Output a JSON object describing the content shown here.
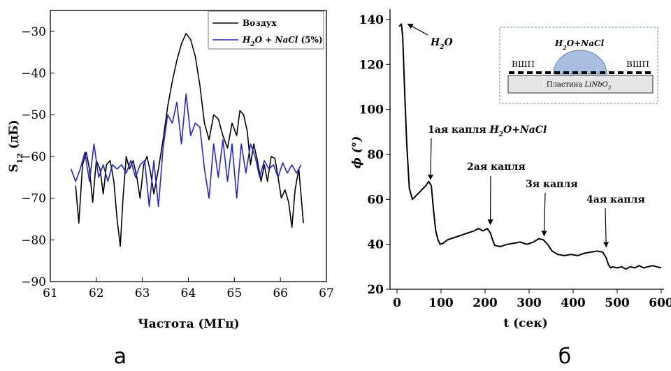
{
  "chart_data": [
    {
      "type": "line",
      "panel_label": "а",
      "xlabel": "Частота (МГц)",
      "ylabel_main": "S",
      "ylabel_sub": "12",
      "ylabel_unit": " (дБ)",
      "xlim": [
        61,
        67
      ],
      "ylim": [
        -90,
        -25
      ],
      "xticks": [
        61,
        62,
        63,
        64,
        65,
        66,
        67
      ],
      "yticks": [
        -90,
        -80,
        -70,
        -60,
        -50,
        -40,
        -30
      ],
      "legend_position": "top-right",
      "series": [
        {
          "name": "Воздух",
          "color": "#000000",
          "x": [
            61.55,
            61.62,
            61.7,
            61.78,
            61.85,
            61.92,
            62.0,
            62.08,
            62.15,
            62.22,
            62.3,
            62.38,
            62.45,
            62.52,
            62.58,
            62.65,
            62.72,
            62.8,
            62.88,
            62.95,
            63.03,
            63.1,
            63.18,
            63.25,
            63.35,
            63.45,
            63.55,
            63.65,
            63.75,
            63.85,
            63.95,
            64.05,
            64.15,
            64.25,
            64.35,
            64.45,
            64.55,
            64.65,
            64.75,
            64.85,
            64.95,
            65.05,
            65.12,
            65.2,
            65.28,
            65.35,
            65.42,
            65.5,
            65.58,
            65.65,
            65.72,
            65.8,
            65.88,
            65.95,
            66.02,
            66.1,
            66.18,
            66.25,
            66.32,
            66.4,
            66.5
          ],
          "y": [
            -67,
            -76,
            -62,
            -59,
            -63,
            -71,
            -61,
            -63,
            -69,
            -62,
            -61,
            -66,
            -75,
            -81.5,
            -70,
            -60,
            -63,
            -61,
            -65,
            -70,
            -62,
            -60,
            -64,
            -69,
            -63,
            -56,
            -48,
            -42,
            -37,
            -33,
            -30.5,
            -32,
            -36,
            -43,
            -52,
            -56,
            -50,
            -51,
            -55,
            -58,
            -52,
            -55,
            -49,
            -50,
            -54,
            -62,
            -57,
            -61,
            -66,
            -62,
            -66,
            -60,
            -60.5,
            -65,
            -70,
            -68,
            -71,
            -77,
            -68,
            -63,
            -76
          ]
        },
        {
          "name": "H2O + NaCl (5%)",
          "name_parts": [
            "H",
            "2",
            "O + ",
            "NaCl",
            " (5%)"
          ],
          "color": "#1f24e6",
          "x": [
            61.45,
            61.55,
            61.65,
            61.75,
            61.85,
            61.95,
            62.05,
            62.15,
            62.25,
            62.35,
            62.45,
            62.55,
            62.65,
            62.75,
            62.85,
            62.95,
            63.05,
            63.15,
            63.25,
            63.35,
            63.45,
            63.55,
            63.65,
            63.75,
            63.85,
            63.95,
            64.05,
            64.15,
            64.25,
            64.35,
            64.45,
            64.55,
            64.65,
            64.75,
            64.85,
            64.95,
            65.05,
            65.15,
            65.25,
            65.35,
            65.45,
            65.55,
            65.65,
            65.75,
            65.85,
            65.95,
            66.05,
            66.15,
            66.25,
            66.35,
            66.45
          ],
          "y": [
            -63,
            -66,
            -63,
            -59,
            -66,
            -57,
            -65,
            -62,
            -66,
            -62,
            -63,
            -62,
            -64,
            -61,
            -65,
            -62,
            -61,
            -72,
            -61,
            -72,
            -58,
            -50,
            -52,
            -47,
            -57,
            -45,
            -55,
            -52,
            -53,
            -63,
            -70,
            -57,
            -65,
            -56,
            -66,
            -57,
            -70,
            -57,
            -64,
            -57,
            -60,
            -65,
            -61,
            -63,
            -62,
            -65,
            -61.5,
            -64,
            -62,
            -64,
            -62
          ]
        }
      ]
    },
    {
      "type": "line",
      "panel_label": "б",
      "xlabel": "t (сек)",
      "ylabel": "ϕ (°)",
      "xlim": [
        0,
        600
      ],
      "ylim": [
        20,
        140
      ],
      "xticks": [
        0,
        100,
        200,
        300,
        400,
        500,
        600
      ],
      "yticks": [
        20,
        40,
        60,
        80,
        100,
        120,
        140
      ],
      "series": [
        {
          "name": "",
          "color": "#000000",
          "x": [
            5,
            10,
            13,
            17,
            22,
            28,
            35,
            45,
            55,
            65,
            72,
            78,
            83,
            88,
            93,
            98,
            105,
            115,
            130,
            145,
            160,
            175,
            185,
            195,
            205,
            212,
            217,
            222,
            235,
            250,
            265,
            280,
            295,
            310,
            322,
            332,
            342,
            352,
            365,
            380,
            395,
            410,
            425,
            440,
            455,
            467,
            475,
            480,
            485,
            490,
            500,
            510,
            520,
            530,
            540,
            550,
            560,
            570,
            580,
            590,
            600
          ],
          "y": [
            137,
            138,
            132,
            110,
            85,
            65,
            60,
            62,
            64,
            66,
            68,
            66,
            55,
            46,
            42,
            40,
            40.5,
            42,
            43,
            44,
            45,
            46,
            47,
            46,
            47,
            45,
            42,
            39.5,
            39,
            40,
            40.5,
            41,
            40,
            41,
            42.5,
            42,
            40,
            37,
            35.5,
            35,
            35.5,
            35,
            36,
            36.5,
            37,
            36.5,
            34,
            31,
            29.5,
            30,
            29.5,
            30,
            29,
            30,
            29.5,
            30.5,
            29.5,
            30,
            30.5,
            30,
            29.5
          ]
        }
      ],
      "annotations": [
        {
          "text_parts": [
            "1ая капля ",
            "H",
            "2",
            "O+NaCl"
          ],
          "arrow_to": [
            76,
            67
          ]
        },
        {
          "text": "2ая капля",
          "arrow_to": [
            212,
            47
          ]
        },
        {
          "text": "3я капля",
          "arrow_to": [
            334,
            42
          ]
        },
        {
          "text": "4ая капля",
          "arrow_to": [
            475,
            37
          ]
        },
        {
          "text_parts": [
            "H",
            "2",
            "O"
          ],
          "arrow_to": [
            12,
            138
          ]
        }
      ],
      "inset": {
        "title_parts": [
          "H",
          "2",
          "O+",
          "NaCl"
        ],
        "left_label": "ВШП",
        "right_label": "ВШП",
        "substrate_parts": [
          "Пластина ",
          "LiNbO",
          "3"
        ]
      }
    }
  ]
}
